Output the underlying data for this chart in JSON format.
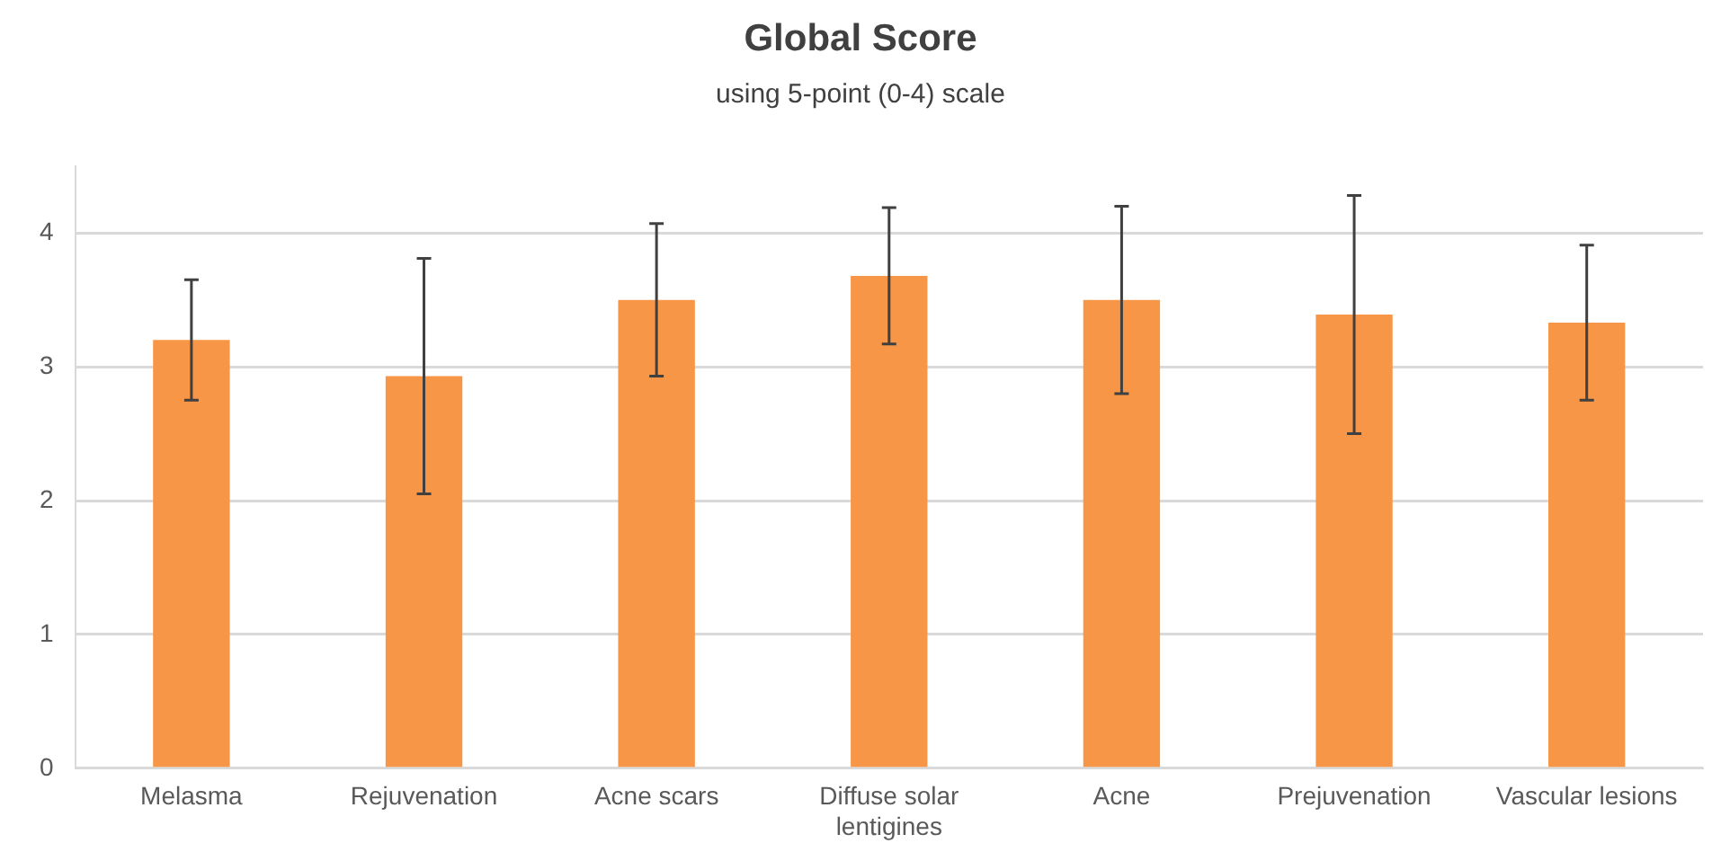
{
  "chart_data": {
    "type": "bar",
    "title": "Global Score",
    "subtitle": "using 5-point (0-4) scale",
    "categories": [
      "Melasma",
      "Rejuvenation",
      "Acne scars",
      "Diffuse solar lentigines",
      "Acne",
      "Prejuvenation",
      "Vascular lesions"
    ],
    "values": [
      3.2,
      2.93,
      3.5,
      3.68,
      3.5,
      3.39,
      3.33
    ],
    "errors": [
      0.45,
      0.88,
      0.57,
      0.51,
      0.7,
      0.89,
      0.58
    ],
    "color": "#f79646",
    "ylim": [
      0,
      4.5
    ],
    "yticks": [
      0,
      1,
      2,
      3,
      4
    ],
    "grid": "y",
    "legend": false
  }
}
